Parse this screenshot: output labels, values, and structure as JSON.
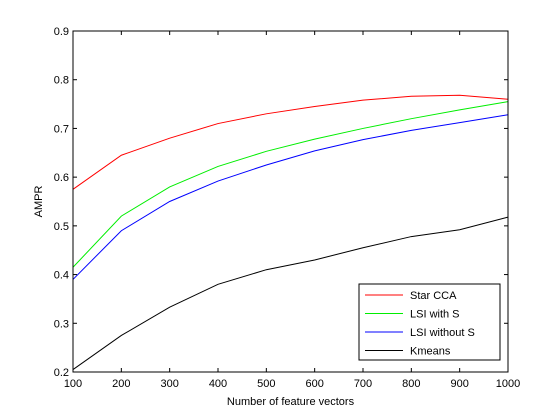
{
  "chart_data": {
    "type": "line",
    "title": "",
    "xlabel": "Number of feature vectors",
    "ylabel": "AMPR",
    "xlim": [
      100,
      1000
    ],
    "ylim": [
      0.2,
      0.9
    ],
    "xticks": [
      100,
      200,
      300,
      400,
      500,
      600,
      700,
      800,
      900,
      1000
    ],
    "yticks": [
      0.2,
      0.3,
      0.4,
      0.5,
      0.6,
      0.7,
      0.8,
      0.9
    ],
    "grid": false,
    "legend_position": "bottom-right",
    "x": [
      100,
      200,
      300,
      400,
      500,
      600,
      700,
      800,
      900,
      1000
    ],
    "series": [
      {
        "name": "Star CCA",
        "color": "#ff0000",
        "values": [
          0.575,
          0.645,
          0.68,
          0.71,
          0.73,
          0.745,
          0.758,
          0.766,
          0.768,
          0.76
        ]
      },
      {
        "name": "LSI with S",
        "color": "#00ee00",
        "values": [
          0.415,
          0.52,
          0.58,
          0.622,
          0.653,
          0.678,
          0.7,
          0.72,
          0.738,
          0.755
        ]
      },
      {
        "name": "LSI without S",
        "color": "#0000ff",
        "values": [
          0.39,
          0.49,
          0.55,
          0.592,
          0.625,
          0.654,
          0.677,
          0.696,
          0.712,
          0.728
        ]
      },
      {
        "name": "Kmeans",
        "color": "#000000",
        "values": [
          0.205,
          0.275,
          0.333,
          0.38,
          0.41,
          0.43,
          0.455,
          0.478,
          0.492,
          0.518
        ]
      }
    ]
  }
}
